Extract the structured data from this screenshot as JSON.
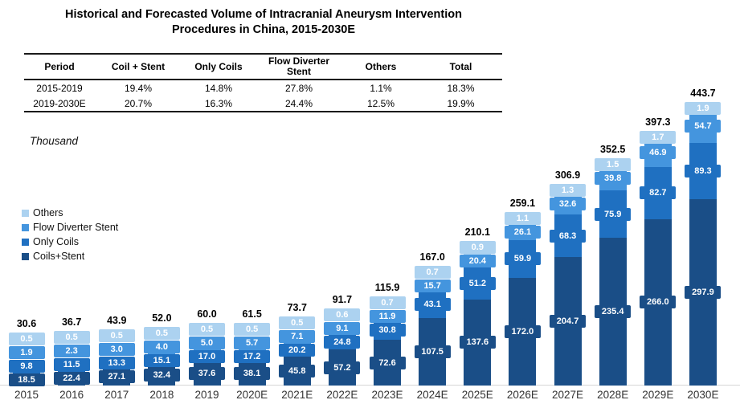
{
  "title": {
    "line1": "Historical and Forecasted Volume of Intracranial Aneurysm Intervention",
    "line2": "Procedures in China, 2015-2030E"
  },
  "table": {
    "headers": [
      "Period",
      "Coil + Stent",
      "Only Coils",
      "Flow Diverter Stent",
      "Others",
      "Total"
    ],
    "rows": [
      [
        "2015-2019",
        "19.4%",
        "14.8%",
        "27.8%",
        "1.1%",
        "18.3%"
      ],
      [
        "2019-2030E",
        "20.7%",
        "16.3%",
        "24.4%",
        "12.5%",
        "19.9%"
      ]
    ]
  },
  "chart_data": {
    "type": "bar",
    "stacked": true,
    "ylabel": "Thousand",
    "grid": false,
    "legend_position": "left",
    "legend_order_top_to_bottom": [
      "Others",
      "Flow Diverter Stent",
      "Only Coils",
      "Coils+Stent"
    ],
    "categories": [
      "2015",
      "2016",
      "2017",
      "2018",
      "2019",
      "2020E",
      "2021E",
      "2022E",
      "2023E",
      "2024E",
      "2025E",
      "2026E",
      "2027E",
      "2028E",
      "2029E",
      "2030E"
    ],
    "series": [
      {
        "name": "Coils+Stent",
        "color": "#1A4E87",
        "values": [
          18.5,
          22.4,
          27.1,
          32.4,
          37.6,
          38.1,
          45.8,
          57.2,
          72.6,
          107.5,
          137.6,
          172.0,
          204.7,
          235.4,
          266.0,
          297.9
        ]
      },
      {
        "name": "Only Coils",
        "color": "#1F70C1",
        "values": [
          9.8,
          11.5,
          13.3,
          15.1,
          17.0,
          17.2,
          20.2,
          24.8,
          30.8,
          43.1,
          51.2,
          59.9,
          68.3,
          75.9,
          82.7,
          89.3
        ]
      },
      {
        "name": "Flow Diverter Stent",
        "color": "#4495DE",
        "values": [
          1.9,
          2.3,
          3.0,
          4.0,
          5.0,
          5.7,
          7.1,
          9.1,
          11.9,
          15.7,
          20.4,
          26.1,
          32.6,
          39.8,
          46.9,
          54.7
        ]
      },
      {
        "name": "Others",
        "color": "#ACD2F0",
        "values": [
          0.5,
          0.5,
          0.5,
          0.5,
          0.5,
          0.5,
          0.5,
          0.6,
          0.7,
          0.7,
          0.9,
          1.1,
          1.3,
          1.5,
          1.7,
          1.9
        ]
      }
    ],
    "totals": [
      30.6,
      36.7,
      43.9,
      52.0,
      60.0,
      61.5,
      73.7,
      91.7,
      115.9,
      167.0,
      210.1,
      259.1,
      306.9,
      352.5,
      397.3,
      443.7
    ]
  }
}
